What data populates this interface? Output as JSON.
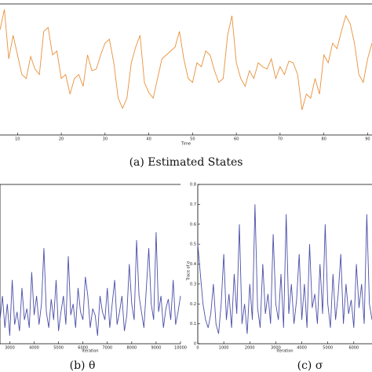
{
  "chart_data": [
    {
      "type": "line",
      "xlabel": "Time",
      "caption": "(a) Estimated States",
      "x": [
        6,
        7,
        8,
        9,
        10,
        11,
        12,
        13,
        14,
        15,
        16,
        17,
        18,
        19,
        20,
        21,
        22,
        23,
        24,
        25,
        26,
        27,
        28,
        29,
        30,
        31,
        32,
        33,
        34,
        35,
        36,
        37,
        38,
        39,
        40,
        41,
        42,
        43,
        44,
        45,
        46,
        47,
        48,
        49,
        50,
        51,
        52,
        53,
        54,
        55,
        56,
        57,
        58,
        59,
        60,
        61,
        62,
        63,
        64,
        65,
        66,
        67,
        68,
        69,
        70,
        71,
        72,
        73,
        74,
        75,
        76,
        77,
        78,
        79,
        80,
        81,
        82,
        83,
        84,
        85,
        86,
        87,
        88,
        89,
        90,
        91
      ],
      "series": [
        {
          "color": "#e8913a",
          "values": [
            134,
            160,
            97,
            127,
            102,
            77,
            72,
            100,
            84,
            77,
            132,
            137,
            102,
            107,
            72,
            77,
            52,
            72,
            77,
            62,
            102,
            82,
            84,
            102,
            117,
            122,
            92,
            47,
            34,
            47,
            92,
            112,
            127,
            67,
            54,
            47,
            72,
            97,
            102,
            107,
            112,
            132,
            97,
            72,
            67,
            92,
            87,
            107,
            102,
            82,
            67,
            72,
            127,
            152,
            92,
            72,
            62,
            82,
            72,
            92,
            87,
            84,
            97,
            72,
            87,
            77,
            94,
            92,
            77,
            32,
            52,
            47,
            72,
            52,
            102,
            92,
            117,
            110,
            132,
            152,
            142,
            117,
            77,
            67,
            97,
            117
          ]
        }
      ],
      "xlim": [
        6,
        91
      ],
      "xticks": [
        10,
        20,
        30,
        40,
        50,
        60,
        70,
        80,
        90
      ],
      "ylim": [
        0,
        167
      ]
    },
    {
      "type": "line",
      "xlabel": "Iteration",
      "caption": "(b) θ",
      "x": [
        2600,
        2700,
        2800,
        2900,
        3000,
        3100,
        3200,
        3300,
        3400,
        3500,
        3600,
        3700,
        3800,
        3900,
        4000,
        4100,
        4200,
        4300,
        4400,
        4500,
        4600,
        4700,
        4800,
        4900,
        5000,
        5100,
        5200,
        5300,
        5400,
        5500,
        5600,
        5700,
        5800,
        5900,
        6000,
        6100,
        6200,
        6300,
        6400,
        6500,
        6600,
        6700,
        6800,
        6900,
        7000,
        7100,
        7200,
        7300,
        7400,
        7500,
        7600,
        7700,
        7800,
        7900,
        8000,
        8100,
        8200,
        8300,
        8400,
        8500,
        8600,
        8700,
        8800,
        8900,
        9000,
        9100,
        9200,
        9300,
        9400,
        9500,
        9600,
        9700,
        9800,
        9900,
        10000
      ],
      "series": [
        {
          "color": "#4b4fa8",
          "values": [
            0.15,
            0.3,
            0.1,
            0.25,
            0.05,
            0.4,
            0.12,
            0.2,
            0.08,
            0.35,
            0.15,
            0.22,
            0.1,
            0.45,
            0.18,
            0.3,
            0.12,
            0.25,
            0.6,
            0.2,
            0.1,
            0.28,
            0.15,
            0.4,
            0.08,
            0.2,
            0.3,
            0.12,
            0.55,
            0.18,
            0.25,
            0.1,
            0.35,
            0.2,
            0.15,
            0.42,
            0.3,
            0.1,
            0.22,
            0.18,
            0.05,
            0.3,
            0.2,
            0.15,
            0.35,
            0.1,
            0.25,
            0.4,
            0.12,
            0.2,
            0.3,
            0.08,
            0.18,
            0.5,
            0.25,
            0.15,
            0.65,
            0.3,
            0.2,
            0.1,
            0.35,
            0.6,
            0.25,
            0.15,
            0.7,
            0.2,
            0.3,
            0.1,
            0.22,
            0.28,
            0.15,
            0.4,
            0.12,
            0.2,
            0.3
          ]
        }
      ],
      "xlim": [
        2600,
        10000
      ],
      "xticks": [
        3000,
        4000,
        5000,
        6000,
        7000,
        8000,
        9000,
        10000
      ],
      "ylim": [
        0,
        1
      ]
    },
    {
      "type": "line",
      "xlabel": "Iteration",
      "ylabel": "Trace of σ",
      "caption": "(c) σ",
      "x": [
        0,
        100,
        200,
        300,
        400,
        500,
        600,
        700,
        800,
        900,
        1000,
        1100,
        1200,
        1300,
        1400,
        1500,
        1600,
        1700,
        1800,
        1900,
        2000,
        2100,
        2200,
        2300,
        2400,
        2500,
        2600,
        2700,
        2800,
        2900,
        3000,
        3100,
        3200,
        3300,
        3400,
        3500,
        3600,
        3700,
        3800,
        3900,
        4000,
        4100,
        4200,
        4300,
        4400,
        4500,
        4600,
        4700,
        4800,
        4900,
        5000,
        5100,
        5200,
        5300,
        5400,
        5500,
        5600,
        5700,
        5800,
        5900,
        6000,
        6100,
        6200,
        6300,
        6400,
        6500,
        6600,
        6700
      ],
      "series": [
        {
          "color": "#4b4fa8",
          "values": [
            0.5,
            0.35,
            0.2,
            0.12,
            0.08,
            0.15,
            0.3,
            0.1,
            0.05,
            0.2,
            0.45,
            0.12,
            0.25,
            0.08,
            0.35,
            0.15,
            0.6,
            0.1,
            0.2,
            0.05,
            0.3,
            0.12,
            0.7,
            0.18,
            0.08,
            0.4,
            0.15,
            0.25,
            0.1,
            0.55,
            0.2,
            0.12,
            0.35,
            0.08,
            0.65,
            0.15,
            0.3,
            0.1,
            0.22,
            0.45,
            0.12,
            0.3,
            0.08,
            0.5,
            0.18,
            0.25,
            0.1,
            0.4,
            0.15,
            0.6,
            0.2,
            0.08,
            0.35,
            0.12,
            0.25,
            0.45,
            0.1,
            0.3,
            0.15,
            0.22,
            0.08,
            0.4,
            0.18,
            0.3,
            0.1,
            0.65,
            0.2,
            0.12
          ]
        }
      ],
      "xlim": [
        0,
        6700
      ],
      "xticks": [
        0,
        1000,
        2000,
        3000,
        4000,
        5000,
        6000
      ],
      "ylim": [
        0,
        0.8
      ],
      "yticks": [
        0,
        0.1,
        0.2,
        0.3,
        0.4,
        0.5,
        0.6,
        0.7,
        0.8
      ]
    }
  ]
}
